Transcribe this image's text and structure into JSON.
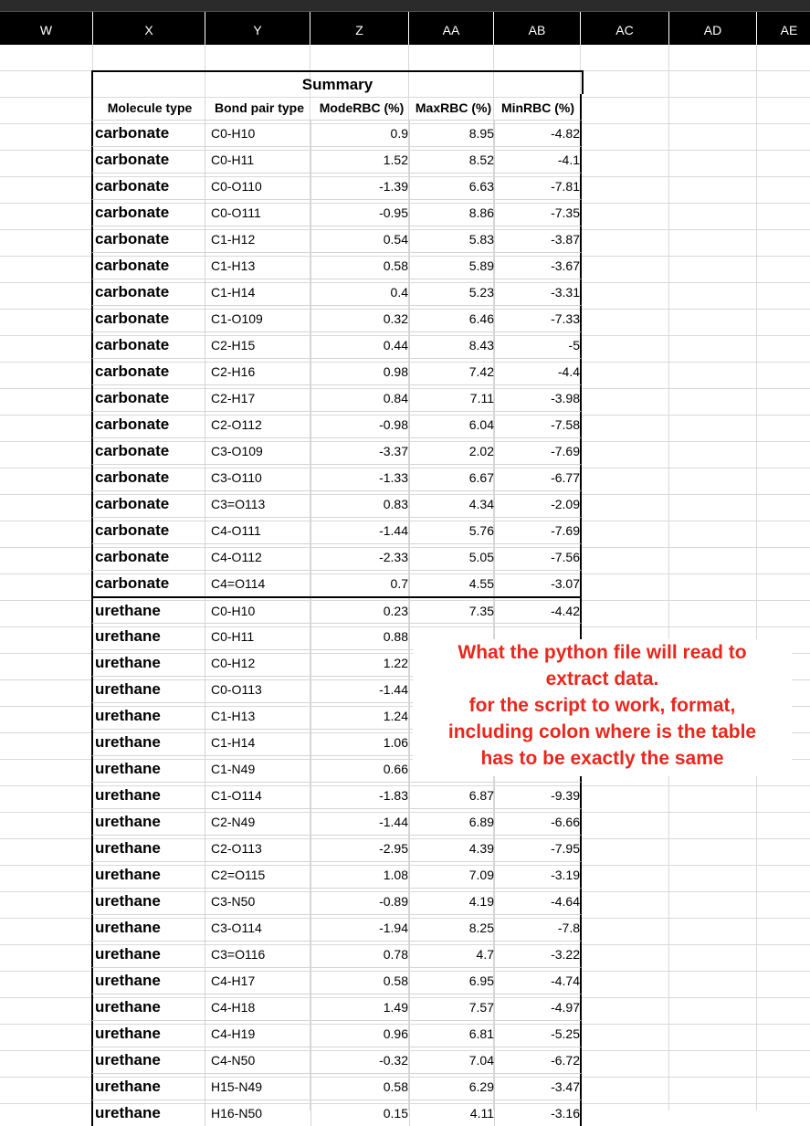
{
  "columns": [
    "W",
    "X",
    "Y",
    "Z",
    "AA",
    "AB",
    "AC",
    "AD",
    "AE"
  ],
  "summary": {
    "title": "Summary",
    "headers": {
      "molecule": "Molecule type",
      "bond": "Bond pair type",
      "mode": "ModeRBC (%)",
      "max": "MaxRBC (%)",
      "min": "MinRBC (%)"
    },
    "rows": [
      {
        "mol": "carbonate",
        "bond": "C0-H10",
        "mode": "0.9",
        "max": "8.95",
        "min": "-4.82"
      },
      {
        "mol": "carbonate",
        "bond": "C0-H11",
        "mode": "1.52",
        "max": "8.52",
        "min": "-4.1"
      },
      {
        "mol": "carbonate",
        "bond": "C0-O110",
        "mode": "-1.39",
        "max": "6.63",
        "min": "-7.81"
      },
      {
        "mol": "carbonate",
        "bond": "C0-O111",
        "mode": "-0.95",
        "max": "8.86",
        "min": "-7.35"
      },
      {
        "mol": "carbonate",
        "bond": "C1-H12",
        "mode": "0.54",
        "max": "5.83",
        "min": "-3.87"
      },
      {
        "mol": "carbonate",
        "bond": "C1-H13",
        "mode": "0.58",
        "max": "5.89",
        "min": "-3.67"
      },
      {
        "mol": "carbonate",
        "bond": "C1-H14",
        "mode": "0.4",
        "max": "5.23",
        "min": "-3.31"
      },
      {
        "mol": "carbonate",
        "bond": "C1-O109",
        "mode": "0.32",
        "max": "6.46",
        "min": "-7.33"
      },
      {
        "mol": "carbonate",
        "bond": "C2-H15",
        "mode": "0.44",
        "max": "8.43",
        "min": "-5"
      },
      {
        "mol": "carbonate",
        "bond": "C2-H16",
        "mode": "0.98",
        "max": "7.42",
        "min": "-4.4"
      },
      {
        "mol": "carbonate",
        "bond": "C2-H17",
        "mode": "0.84",
        "max": "7.11",
        "min": "-3.98"
      },
      {
        "mol": "carbonate",
        "bond": "C2-O112",
        "mode": "-0.98",
        "max": "6.04",
        "min": "-7.58"
      },
      {
        "mol": "carbonate",
        "bond": "C3-O109",
        "mode": "-3.37",
        "max": "2.02",
        "min": "-7.69"
      },
      {
        "mol": "carbonate",
        "bond": "C3-O110",
        "mode": "-1.33",
        "max": "6.67",
        "min": "-6.77"
      },
      {
        "mol": "carbonate",
        "bond": "C3=O113",
        "mode": "0.83",
        "max": "4.34",
        "min": "-2.09"
      },
      {
        "mol": "carbonate",
        "bond": "C4-O111",
        "mode": "-1.44",
        "max": "5.76",
        "min": "-7.69"
      },
      {
        "mol": "carbonate",
        "bond": "C4-O112",
        "mode": "-2.33",
        "max": "5.05",
        "min": "-7.56"
      },
      {
        "mol": "carbonate",
        "bond": "C4=O114",
        "mode": "0.7",
        "max": "4.55",
        "min": "-3.07"
      },
      {
        "mol": "urethane",
        "bond": "C0-H10",
        "mode": "0.23",
        "max": "7.35",
        "min": "-4.42"
      },
      {
        "mol": "urethane",
        "bond": "C0-H11",
        "mode": "0.88",
        "max": "",
        "min": ""
      },
      {
        "mol": "urethane",
        "bond": "C0-H12",
        "mode": "1.22",
        "max": "",
        "min": ""
      },
      {
        "mol": "urethane",
        "bond": "C0-O113",
        "mode": "-1.44",
        "max": "",
        "min": ""
      },
      {
        "mol": "urethane",
        "bond": "C1-H13",
        "mode": "1.24",
        "max": "",
        "min": ""
      },
      {
        "mol": "urethane",
        "bond": "C1-H14",
        "mode": "1.06",
        "max": "",
        "min": ""
      },
      {
        "mol": "urethane",
        "bond": "C1-N49",
        "mode": "0.66",
        "max": "",
        "min": ""
      },
      {
        "mol": "urethane",
        "bond": "C1-O114",
        "mode": "-1.83",
        "max": "6.87",
        "min": "-9.39"
      },
      {
        "mol": "urethane",
        "bond": "C2-N49",
        "mode": "-1.44",
        "max": "6.89",
        "min": "-6.66"
      },
      {
        "mol": "urethane",
        "bond": "C2-O113",
        "mode": "-2.95",
        "max": "4.39",
        "min": "-7.95"
      },
      {
        "mol": "urethane",
        "bond": "C2=O115",
        "mode": "1.08",
        "max": "7.09",
        "min": "-3.19"
      },
      {
        "mol": "urethane",
        "bond": "C3-N50",
        "mode": "-0.89",
        "max": "4.19",
        "min": "-4.64"
      },
      {
        "mol": "urethane",
        "bond": "C3-O114",
        "mode": "-1.94",
        "max": "8.25",
        "min": "-7.8"
      },
      {
        "mol": "urethane",
        "bond": "C3=O116",
        "mode": "0.78",
        "max": "4.7",
        "min": "-3.22"
      },
      {
        "mol": "urethane",
        "bond": "C4-H17",
        "mode": "0.58",
        "max": "6.95",
        "min": "-4.74"
      },
      {
        "mol": "urethane",
        "bond": "C4-H18",
        "mode": "1.49",
        "max": "7.57",
        "min": "-4.97"
      },
      {
        "mol": "urethane",
        "bond": "C4-H19",
        "mode": "0.96",
        "max": "6.81",
        "min": "-5.25"
      },
      {
        "mol": "urethane",
        "bond": "C4-N50",
        "mode": "-0.32",
        "max": "7.04",
        "min": "-6.72"
      },
      {
        "mol": "urethane",
        "bond": "H15-N49",
        "mode": "0.58",
        "max": "6.29",
        "min": "-3.47"
      },
      {
        "mol": "urethane",
        "bond": "H16-N50",
        "mode": "0.15",
        "max": "4.11",
        "min": "-3.16"
      }
    ]
  },
  "annotation": {
    "lines": [
      "What the python file will read to",
      "extract data.",
      "for the script to work, format,",
      "including colon where is the table",
      "has to be exactly the same"
    ],
    "color": "#e8271d"
  }
}
